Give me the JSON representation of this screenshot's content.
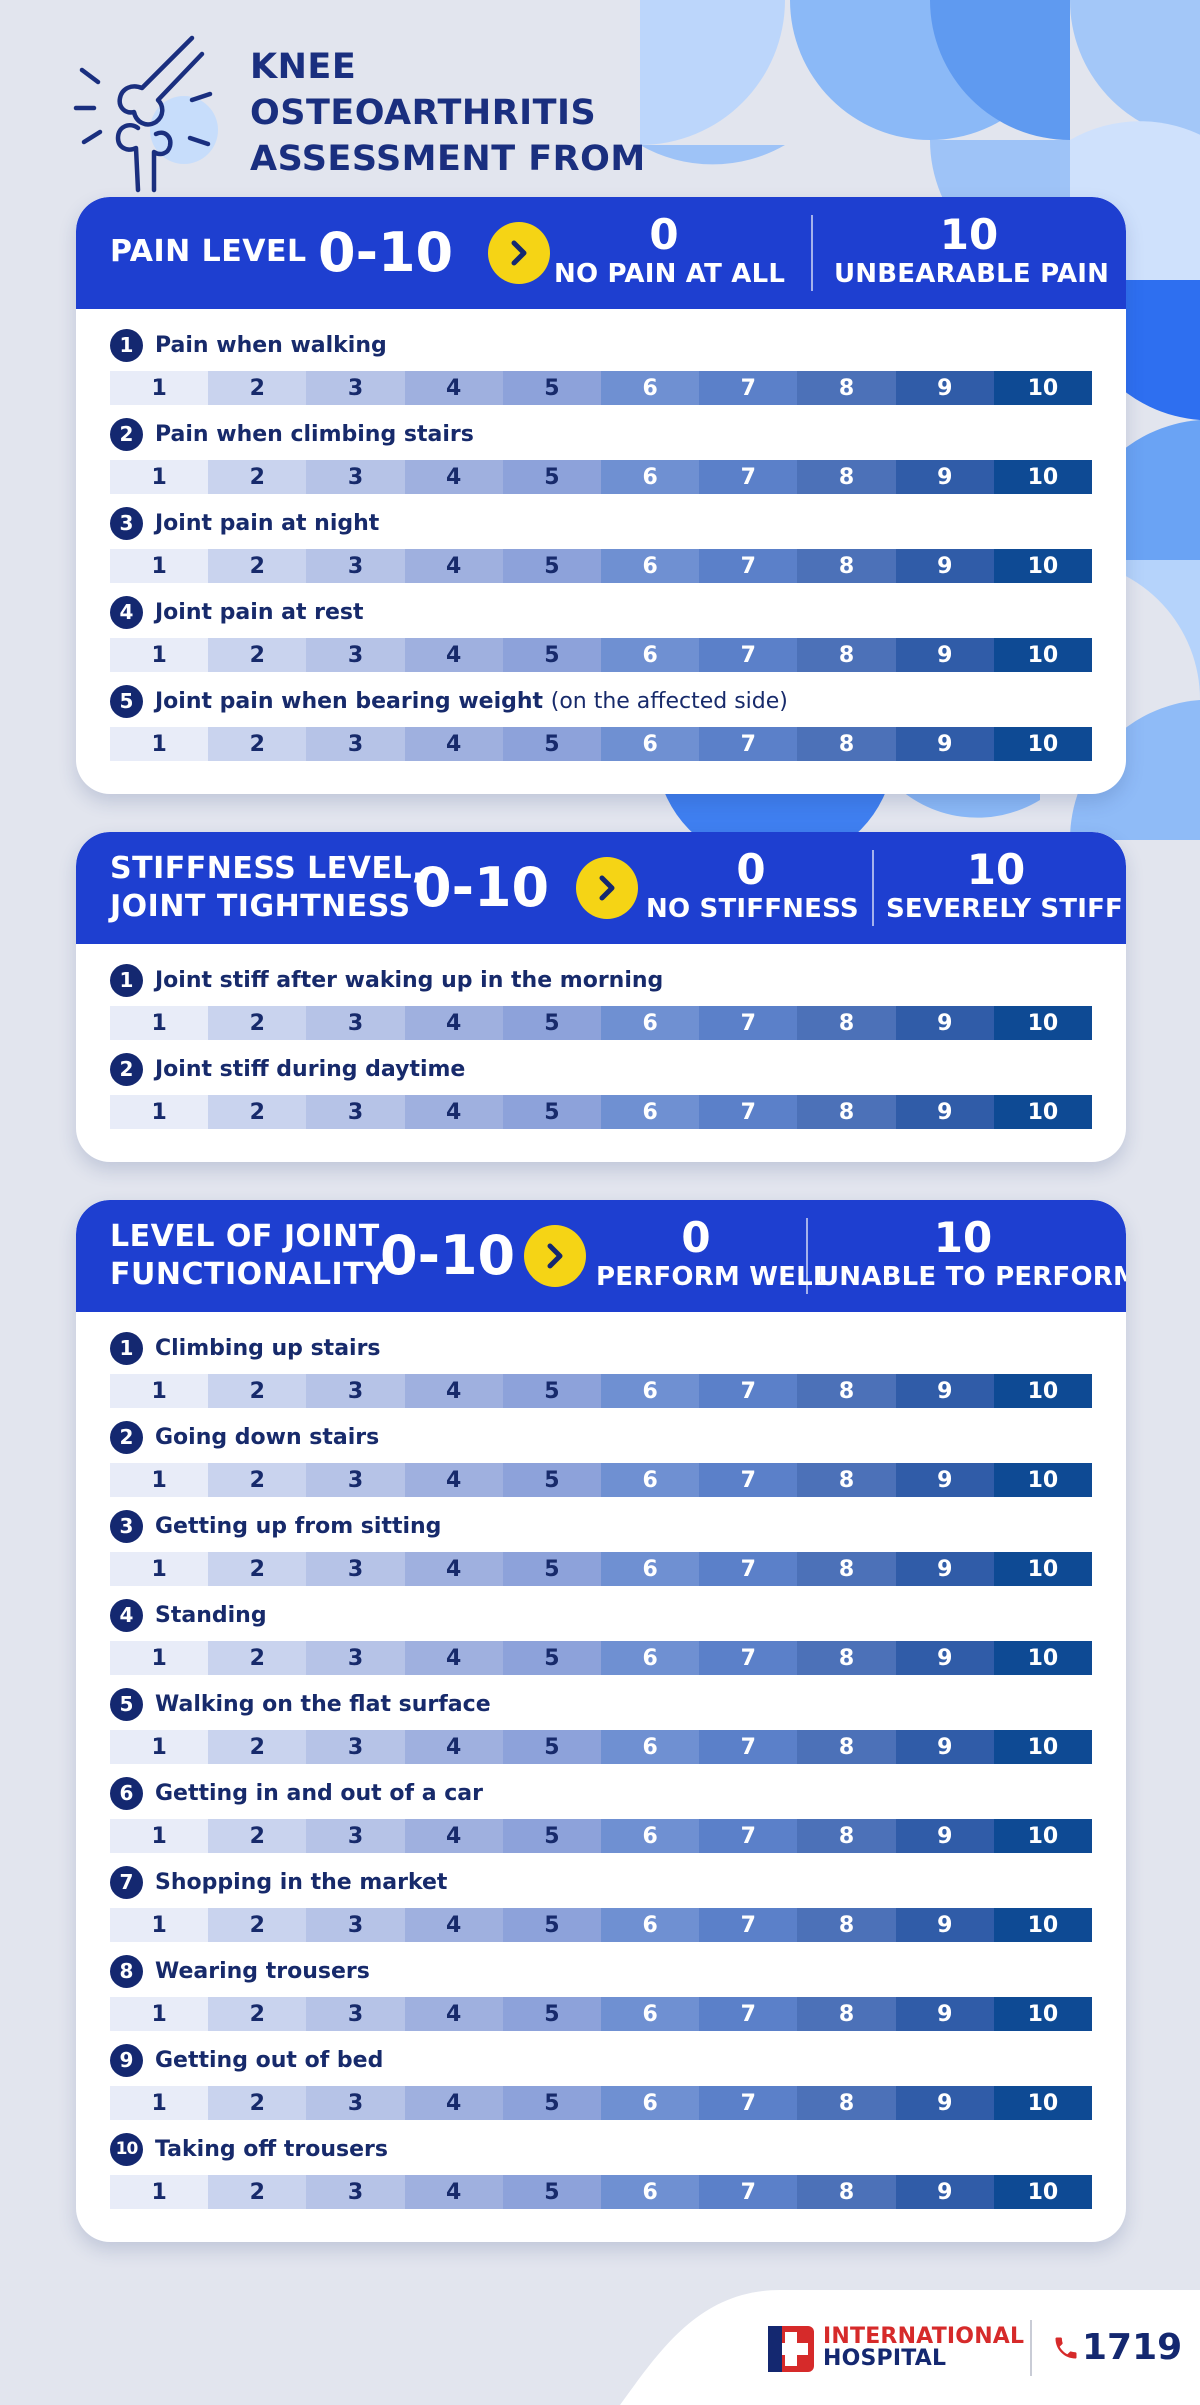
{
  "header": {
    "title_lines": [
      "KNEE",
      "OSTEOARTHRITIS",
      "ASSESSMENT FROM"
    ]
  },
  "scale_numbers": [
    "1",
    "2",
    "3",
    "4",
    "5",
    "6",
    "7",
    "8",
    "9",
    "10"
  ],
  "scale_colors": [
    "#e8ecf8",
    "#c9d3ee",
    "#b6c3e7",
    "#9fb0df",
    "#8da2da",
    "#6f90d2",
    "#5b80c9",
    "#4c71b8",
    "#305ca8",
    "#0e4a94"
  ],
  "scale_text_colors": [
    "#172a6b",
    "#172a6b",
    "#172a6b",
    "#172a6b",
    "#172a6b",
    "#ffffff",
    "#ffffff",
    "#ffffff",
    "#ffffff",
    "#ffffff"
  ],
  "sections": [
    {
      "title_lines": [
        "PAIN LEVEL"
      ],
      "range": "0-10",
      "low": {
        "value": "0",
        "label": "NO PAIN AT ALL"
      },
      "high": {
        "value": "10",
        "label": "UNBEARABLE PAIN"
      },
      "items": [
        {
          "num": "1",
          "text": "Pain when walking",
          "note": ""
        },
        {
          "num": "2",
          "text": "Pain when climbing stairs",
          "note": ""
        },
        {
          "num": "3",
          "text": "Joint pain at night",
          "note": ""
        },
        {
          "num": "4",
          "text": "Joint pain at rest",
          "note": ""
        },
        {
          "num": "5",
          "text": "Joint pain when bearing weight",
          "note": "(on the affected side)"
        }
      ]
    },
    {
      "title_lines": [
        "STIFFNESS LEVEL,",
        "JOINT TIGHTNESS"
      ],
      "range": "0-10",
      "low": {
        "value": "0",
        "label": "NO STIFFNESS"
      },
      "high": {
        "value": "10",
        "label": "SEVERELY STIFF"
      },
      "items": [
        {
          "num": "1",
          "text": "Joint stiff after waking up in the morning",
          "note": ""
        },
        {
          "num": "2",
          "text": "Joint stiff during daytime",
          "note": ""
        }
      ]
    },
    {
      "title_lines": [
        "LEVEL OF JOINT",
        "FUNCTIONALITY"
      ],
      "range": "0-10",
      "low": {
        "value": "0",
        "label": "PERFORM WELL"
      },
      "high": {
        "value": "10",
        "label": "UNABLE TO PERFORM"
      },
      "items": [
        {
          "num": "1",
          "text": "Climbing up stairs",
          "note": ""
        },
        {
          "num": "2",
          "text": "Going down stairs",
          "note": ""
        },
        {
          "num": "3",
          "text": "Getting up from sitting",
          "note": ""
        },
        {
          "num": "4",
          "text": "Standing",
          "note": ""
        },
        {
          "num": "5",
          "text": "Walking on the flat surface",
          "note": ""
        },
        {
          "num": "6",
          "text": "Getting in and out of a car",
          "note": ""
        },
        {
          "num": "7",
          "text": "Shopping in the market",
          "note": ""
        },
        {
          "num": "8",
          "text": "Wearing trousers",
          "note": ""
        },
        {
          "num": "9",
          "text": "Getting out of bed",
          "note": ""
        },
        {
          "num": "10",
          "text": "Taking off trousers",
          "note": ""
        }
      ]
    }
  ],
  "footer": {
    "hospital_lines": [
      "INTERNATIONAL",
      "HOSPITAL"
    ],
    "phone": "1719"
  }
}
